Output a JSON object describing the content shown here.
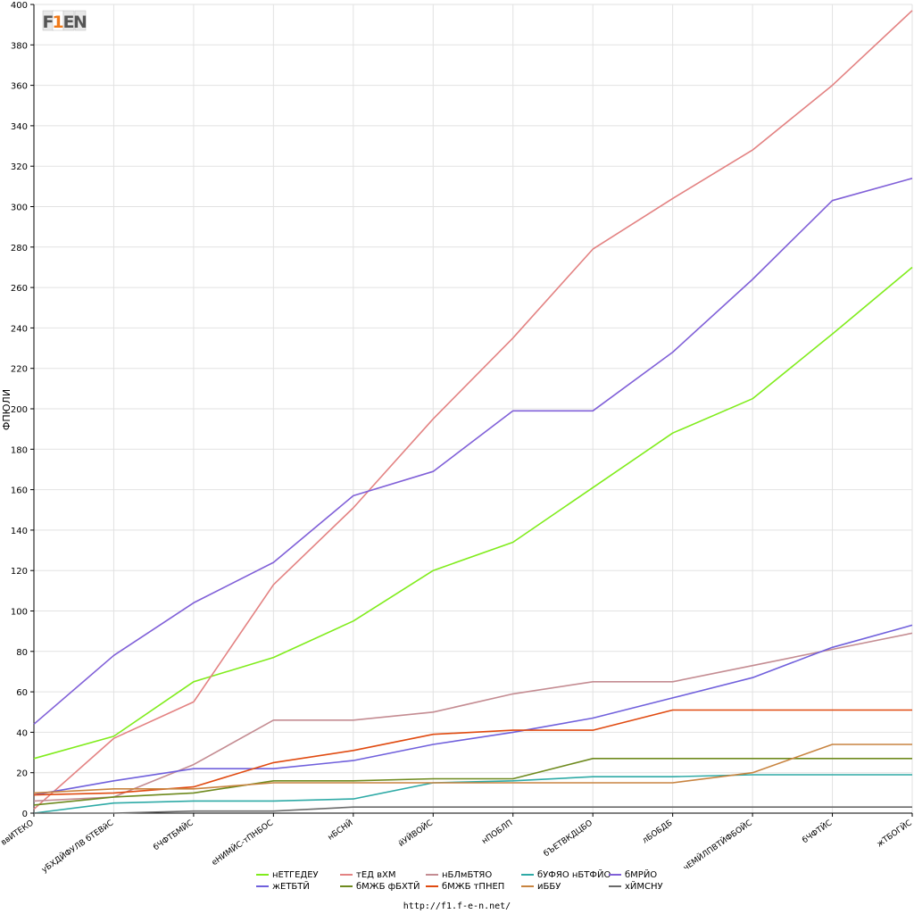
{
  "chart_data": {
    "type": "line",
    "title": "",
    "xlabel": "",
    "ylabel": "ФПЮЛИ",
    "ylim": [
      0,
      400
    ],
    "ytick_step": 20,
    "grid": true,
    "legend_position": "bottom",
    "categories": [
      "ввИТЕКО",
      "уБХДЙФУЛВ бТЕВйС",
      "бЧФТБМЙС",
      "еНИМЙС-тПНБОС",
      "нБСНЙ",
      "йУЙВОЙС",
      "нПОБЛП",
      "бЪЕТВКДЦБО",
      "лБОБДБ",
      "чЕМЙЛПВТЙФБОЙС",
      "бЧФТЙС",
      "жТБОГЙС"
    ],
    "series": [
      {
        "name": "нЕТГЕДЕУ",
        "color": "#80ec1c",
        "values": [
          27,
          38,
          65,
          77,
          95,
          120,
          134,
          161,
          188,
          205,
          237,
          270
        ]
      },
      {
        "name": "тЕД вХМ",
        "color": "#e38282",
        "values": [
          2,
          37,
          55,
          113,
          151,
          195,
          235,
          279,
          304,
          328,
          360,
          397
        ]
      },
      {
        "name": "нБЛмБТЯО",
        "color": "#c48c92",
        "values": [
          6,
          8,
          24,
          46,
          46,
          50,
          59,
          65,
          65,
          73,
          81,
          89
        ]
      },
      {
        "name": "бУФЯО нБТФЙО",
        "color": "#2eaaa6",
        "values": [
          0,
          5,
          6,
          6,
          7,
          15,
          16,
          18,
          18,
          19,
          19,
          19
        ]
      },
      {
        "name": "бМРЙО",
        "color": "#8060d8",
        "values": [
          44,
          78,
          104,
          124,
          157,
          169,
          199,
          199,
          228,
          264,
          303,
          314
        ]
      },
      {
        "name": "жЕТБТЙ",
        "color": "#7060dc",
        "values": [
          9,
          16,
          22,
          22,
          26,
          34,
          40,
          47,
          57,
          67,
          82,
          93
        ]
      },
      {
        "name": "бМЖБ фБХТЙ",
        "color": "#6e8a1e",
        "values": [
          4,
          8,
          10,
          16,
          16,
          17,
          17,
          27,
          27,
          27,
          27,
          27
        ]
      },
      {
        "name": "бМЖБ тПНЕП",
        "color": "#e04a10",
        "values": [
          9,
          10,
          13,
          25,
          31,
          39,
          41,
          41,
          51,
          51,
          51,
          51
        ]
      },
      {
        "name": "иББУ",
        "color": "#c88440",
        "values": [
          10,
          12,
          12,
          15,
          15,
          15,
          15,
          15,
          15,
          20,
          34,
          34
        ]
      },
      {
        "name": "хЙМСНУ",
        "color": "#6a6a6a",
        "values": [
          0,
          0,
          1,
          1,
          3,
          3,
          3,
          3,
          3,
          3,
          3,
          3
        ]
      }
    ]
  },
  "footer": {
    "url": "http://f1.f-e-n.net/"
  },
  "logo": {
    "letters": [
      "F",
      "1",
      "E",
      "N"
    ],
    "colors": [
      "#555555",
      "#f07a1a",
      "#555555",
      "#555555"
    ]
  }
}
